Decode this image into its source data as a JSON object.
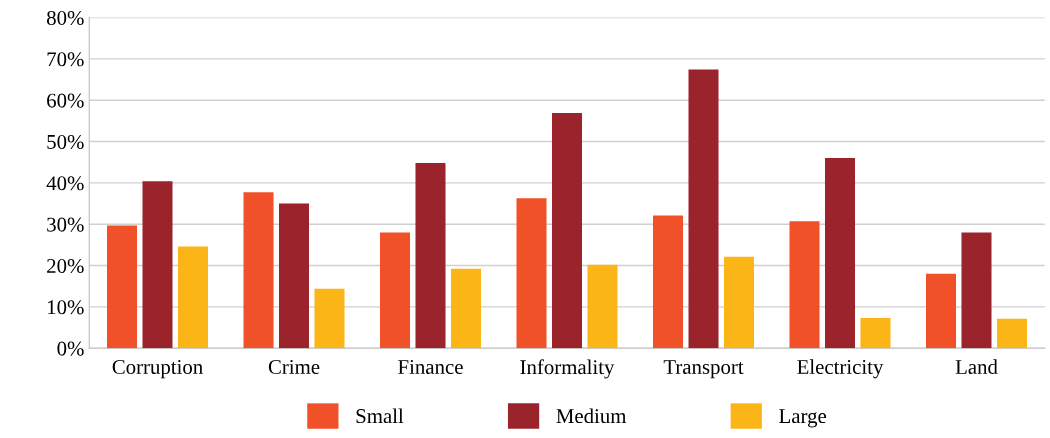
{
  "chart_data": {
    "type": "bar",
    "categories": [
      "Corruption",
      "Crime",
      "Finance",
      "Informality",
      "Transport",
      "Electricity",
      "Land"
    ],
    "series": [
      {
        "name": "Small",
        "color": "#f05128",
        "values": [
          29.7,
          37.7,
          28.0,
          36.3,
          32.1,
          30.7,
          18.0
        ]
      },
      {
        "name": "Medium",
        "color": "#9b242c",
        "values": [
          40.4,
          35.0,
          44.8,
          56.9,
          67.4,
          46.0,
          28.0
        ]
      },
      {
        "name": "Large",
        "color": "#fbb516",
        "values": [
          24.6,
          14.4,
          19.2,
          20.2,
          22.1,
          7.3,
          7.1
        ]
      }
    ],
    "ylim": [
      0,
      80
    ],
    "yticks": [
      {
        "value": 0,
        "label": "0%"
      },
      {
        "value": 10,
        "label": "10%"
      },
      {
        "value": 20,
        "label": "20%"
      },
      {
        "value": 30,
        "label": "30%"
      },
      {
        "value": 40,
        "label": "40%"
      },
      {
        "value": 50,
        "label": "50%"
      },
      {
        "value": 60,
        "label": "60%"
      },
      {
        "value": 70,
        "label": "70%"
      },
      {
        "value": 80,
        "label": "80%"
      }
    ],
    "grid": "y",
    "legend": "bottom"
  }
}
